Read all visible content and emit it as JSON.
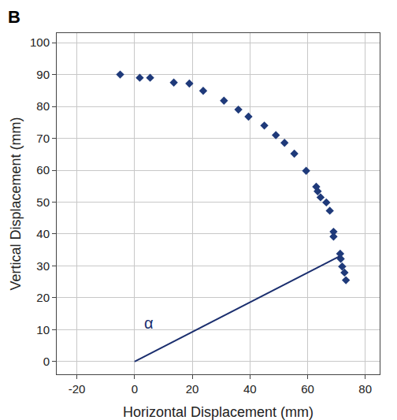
{
  "chart_data": {
    "type": "scatter",
    "title": "B",
    "x_label": "Horizontal Displacement (mm)",
    "y_label": "Vertical Displacement (mm)",
    "xlim": [
      -27,
      85
    ],
    "ylim": [
      -4,
      103
    ],
    "xticks": [
      -20,
      0,
      20,
      40,
      60,
      80
    ],
    "yticks": [
      0,
      10,
      20,
      30,
      40,
      50,
      60,
      70,
      80,
      90,
      100
    ],
    "grid": true,
    "series": [
      {
        "type": "scatter",
        "marker": "diamond",
        "color": "#1f3a7a",
        "x": [
          -5,
          1.8,
          5.4,
          13.6,
          19,
          23.8,
          31,
          36,
          39.5,
          45,
          49,
          52,
          55.4,
          59.5,
          63,
          63.5,
          64.5,
          66.5,
          67.7,
          69,
          69,
          71.3,
          71.5,
          72,
          72.8,
          73.3
        ],
        "values": [
          90,
          89,
          89,
          87.5,
          87.2,
          84.9,
          81.8,
          79,
          76.8,
          74,
          71,
          68.6,
          65.2,
          59.8,
          54.8,
          53.4,
          51.5,
          49.9,
          47.3,
          40.7,
          39.2,
          33.8,
          32.2,
          29.8,
          27.9,
          25.5
        ]
      },
      {
        "type": "line",
        "line_style": "solid",
        "color": "#1a2e6e",
        "x": [
          0,
          71
        ],
        "values": [
          0,
          33
        ]
      }
    ],
    "annotations": [
      {
        "text": "α",
        "x": 5,
        "y": 12
      }
    ]
  }
}
